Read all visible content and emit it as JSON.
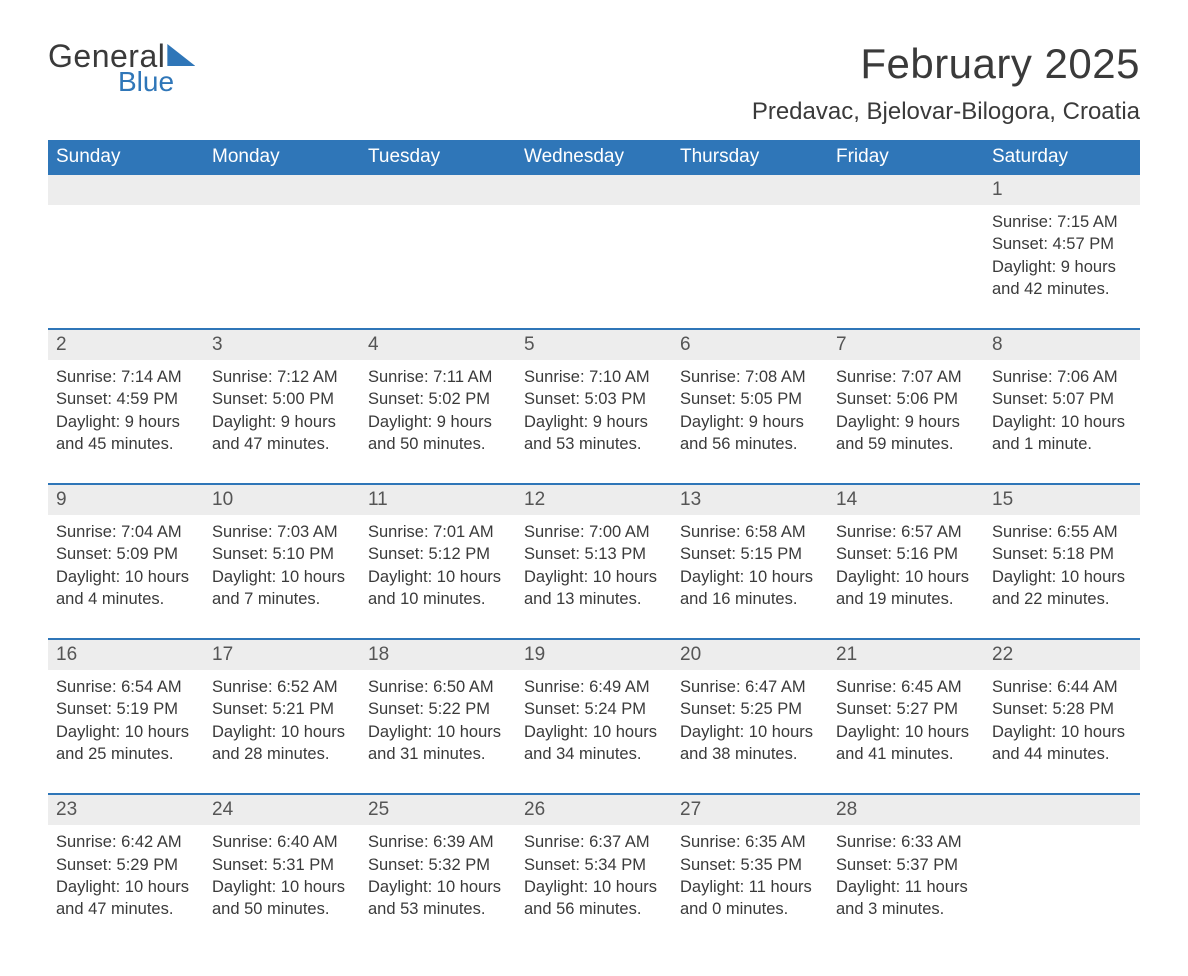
{
  "brand": {
    "part1": "General",
    "part2": "Blue"
  },
  "title": "February 2025",
  "location": "Predavac, Bjelovar-Bilogora, Croatia",
  "colors": {
    "brand_blue": "#2f76b8",
    "header_bg": "#2f76b8",
    "band_bg": "#ededed",
    "text": "#3a3a3a",
    "page_bg": "#ffffff"
  },
  "days_of_week": [
    "Sunday",
    "Monday",
    "Tuesday",
    "Wednesday",
    "Thursday",
    "Friday",
    "Saturday"
  ],
  "weeks": [
    [
      null,
      null,
      null,
      null,
      null,
      null,
      {
        "n": "1",
        "sunrise": "Sunrise: 7:15 AM",
        "sunset": "Sunset: 4:57 PM",
        "daylight": "Daylight: 9 hours and 42 minutes."
      }
    ],
    [
      {
        "n": "2",
        "sunrise": "Sunrise: 7:14 AM",
        "sunset": "Sunset: 4:59 PM",
        "daylight": "Daylight: 9 hours and 45 minutes."
      },
      {
        "n": "3",
        "sunrise": "Sunrise: 7:12 AM",
        "sunset": "Sunset: 5:00 PM",
        "daylight": "Daylight: 9 hours and 47 minutes."
      },
      {
        "n": "4",
        "sunrise": "Sunrise: 7:11 AM",
        "sunset": "Sunset: 5:02 PM",
        "daylight": "Daylight: 9 hours and 50 minutes."
      },
      {
        "n": "5",
        "sunrise": "Sunrise: 7:10 AM",
        "sunset": "Sunset: 5:03 PM",
        "daylight": "Daylight: 9 hours and 53 minutes."
      },
      {
        "n": "6",
        "sunrise": "Sunrise: 7:08 AM",
        "sunset": "Sunset: 5:05 PM",
        "daylight": "Daylight: 9 hours and 56 minutes."
      },
      {
        "n": "7",
        "sunrise": "Sunrise: 7:07 AM",
        "sunset": "Sunset: 5:06 PM",
        "daylight": "Daylight: 9 hours and 59 minutes."
      },
      {
        "n": "8",
        "sunrise": "Sunrise: 7:06 AM",
        "sunset": "Sunset: 5:07 PM",
        "daylight": "Daylight: 10 hours and 1 minute."
      }
    ],
    [
      {
        "n": "9",
        "sunrise": "Sunrise: 7:04 AM",
        "sunset": "Sunset: 5:09 PM",
        "daylight": "Daylight: 10 hours and 4 minutes."
      },
      {
        "n": "10",
        "sunrise": "Sunrise: 7:03 AM",
        "sunset": "Sunset: 5:10 PM",
        "daylight": "Daylight: 10 hours and 7 minutes."
      },
      {
        "n": "11",
        "sunrise": "Sunrise: 7:01 AM",
        "sunset": "Sunset: 5:12 PM",
        "daylight": "Daylight: 10 hours and 10 minutes."
      },
      {
        "n": "12",
        "sunrise": "Sunrise: 7:00 AM",
        "sunset": "Sunset: 5:13 PM",
        "daylight": "Daylight: 10 hours and 13 minutes."
      },
      {
        "n": "13",
        "sunrise": "Sunrise: 6:58 AM",
        "sunset": "Sunset: 5:15 PM",
        "daylight": "Daylight: 10 hours and 16 minutes."
      },
      {
        "n": "14",
        "sunrise": "Sunrise: 6:57 AM",
        "sunset": "Sunset: 5:16 PM",
        "daylight": "Daylight: 10 hours and 19 minutes."
      },
      {
        "n": "15",
        "sunrise": "Sunrise: 6:55 AM",
        "sunset": "Sunset: 5:18 PM",
        "daylight": "Daylight: 10 hours and 22 minutes."
      }
    ],
    [
      {
        "n": "16",
        "sunrise": "Sunrise: 6:54 AM",
        "sunset": "Sunset: 5:19 PM",
        "daylight": "Daylight: 10 hours and 25 minutes."
      },
      {
        "n": "17",
        "sunrise": "Sunrise: 6:52 AM",
        "sunset": "Sunset: 5:21 PM",
        "daylight": "Daylight: 10 hours and 28 minutes."
      },
      {
        "n": "18",
        "sunrise": "Sunrise: 6:50 AM",
        "sunset": "Sunset: 5:22 PM",
        "daylight": "Daylight: 10 hours and 31 minutes."
      },
      {
        "n": "19",
        "sunrise": "Sunrise: 6:49 AM",
        "sunset": "Sunset: 5:24 PM",
        "daylight": "Daylight: 10 hours and 34 minutes."
      },
      {
        "n": "20",
        "sunrise": "Sunrise: 6:47 AM",
        "sunset": "Sunset: 5:25 PM",
        "daylight": "Daylight: 10 hours and 38 minutes."
      },
      {
        "n": "21",
        "sunrise": "Sunrise: 6:45 AM",
        "sunset": "Sunset: 5:27 PM",
        "daylight": "Daylight: 10 hours and 41 minutes."
      },
      {
        "n": "22",
        "sunrise": "Sunrise: 6:44 AM",
        "sunset": "Sunset: 5:28 PM",
        "daylight": "Daylight: 10 hours and 44 minutes."
      }
    ],
    [
      {
        "n": "23",
        "sunrise": "Sunrise: 6:42 AM",
        "sunset": "Sunset: 5:29 PM",
        "daylight": "Daylight: 10 hours and 47 minutes."
      },
      {
        "n": "24",
        "sunrise": "Sunrise: 6:40 AM",
        "sunset": "Sunset: 5:31 PM",
        "daylight": "Daylight: 10 hours and 50 minutes."
      },
      {
        "n": "25",
        "sunrise": "Sunrise: 6:39 AM",
        "sunset": "Sunset: 5:32 PM",
        "daylight": "Daylight: 10 hours and 53 minutes."
      },
      {
        "n": "26",
        "sunrise": "Sunrise: 6:37 AM",
        "sunset": "Sunset: 5:34 PM",
        "daylight": "Daylight: 10 hours and 56 minutes."
      },
      {
        "n": "27",
        "sunrise": "Sunrise: 6:35 AM",
        "sunset": "Sunset: 5:35 PM",
        "daylight": "Daylight: 11 hours and 0 minutes."
      },
      {
        "n": "28",
        "sunrise": "Sunrise: 6:33 AM",
        "sunset": "Sunset: 5:37 PM",
        "daylight": "Daylight: 11 hours and 3 minutes."
      },
      null
    ]
  ]
}
